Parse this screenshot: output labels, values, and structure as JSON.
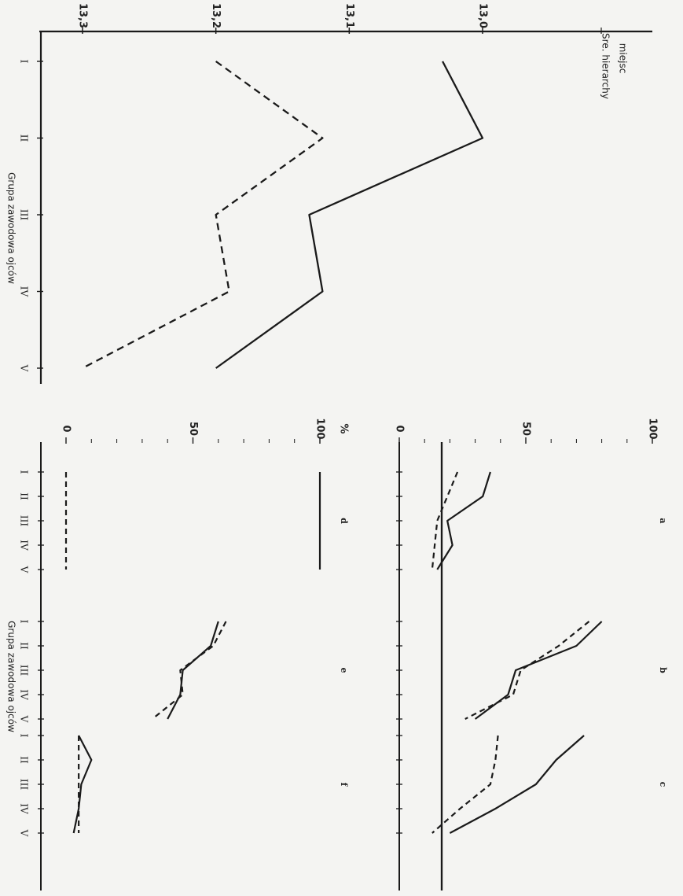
{
  "colors": {
    "line": "#1a1a1a",
    "background": "#f4f4f2"
  },
  "top_axis_note": "Sre. hierarchy",
  "top_axis_note_2": "miejsc",
  "bottom_axis_title": "Grupa zawodowa ojców",
  "top_axis_title": "Grupa zawodowa ojców",
  "percent_label": "%",
  "chart_data": [
    {
      "type": "line",
      "categories": [
        "I",
        "II",
        "III",
        "IV",
        "V"
      ],
      "ylim": [
        12.95,
        13.3
      ],
      "yticks": [
        "13,0",
        "13,1",
        "13,2",
        "13,3"
      ],
      "series": [
        {
          "style": "solid",
          "values": [
            13.03,
            13.0,
            13.13,
            13.12,
            13.2
          ]
        },
        {
          "style": "dashed",
          "values": [
            13.2,
            13.12,
            13.2,
            13.19,
            13.3
          ]
        }
      ]
    },
    {
      "type": "line",
      "panels": [
        {
          "letter": "a",
          "categories": [
            "I",
            "II",
            "III",
            "IV",
            "V"
          ],
          "series": [
            {
              "style": "solid",
              "values": [
                36,
                33,
                19,
                21,
                15
              ]
            },
            {
              "style": "dashed",
              "values": [
                23,
                19,
                15,
                14,
                13
              ]
            }
          ]
        },
        {
          "letter": "b",
          "categories": [
            "I",
            "II",
            "III",
            "IV",
            "V"
          ],
          "series": [
            {
              "style": "solid",
              "values": [
                80,
                70,
                46,
                43,
                30
              ]
            },
            {
              "style": "dashed",
              "values": [
                75,
                63,
                48,
                45,
                26
              ]
            }
          ]
        },
        {
          "letter": "c",
          "categories": [
            "I",
            "II",
            "III",
            "IV",
            "V"
          ],
          "series": [
            {
              "style": "solid",
              "values": [
                73,
                62,
                54,
                38,
                20
              ]
            },
            {
              "style": "dashed",
              "values": [
                39,
                38,
                36,
                24,
                13
              ]
            }
          ]
        }
      ],
      "ylim": [
        0,
        100
      ],
      "yticks": [
        "0",
        "50",
        "100"
      ]
    },
    {
      "type": "line",
      "panels": [
        {
          "letter": "d",
          "categories": [
            "I",
            "II",
            "III",
            "IV",
            "V"
          ],
          "series": [
            {
              "style": "solid",
              "values": [
                100,
                100,
                100,
                100,
                100
              ]
            },
            {
              "style": "dashed",
              "values": [
                0,
                0,
                0,
                0,
                0
              ]
            }
          ]
        },
        {
          "letter": "e",
          "categories": [
            "I",
            "II",
            "III",
            "IV",
            "V"
          ],
          "series": [
            {
              "style": "solid",
              "values": [
                60,
                57,
                46,
                45,
                40
              ]
            },
            {
              "style": "dashed",
              "values": [
                63,
                58,
                45,
                46,
                34
              ]
            }
          ]
        },
        {
          "letter": "f",
          "categories": [
            "I",
            "II",
            "III",
            "IV",
            "V"
          ],
          "series": [
            {
              "style": "solid",
              "values": [
                5,
                10,
                6,
                5,
                3
              ]
            },
            {
              "style": "dashed",
              "values": [
                5,
                5,
                5,
                5,
                5
              ]
            }
          ]
        }
      ],
      "ylim": [
        0,
        100
      ],
      "yticks": [
        "0",
        "50",
        "100"
      ]
    }
  ]
}
